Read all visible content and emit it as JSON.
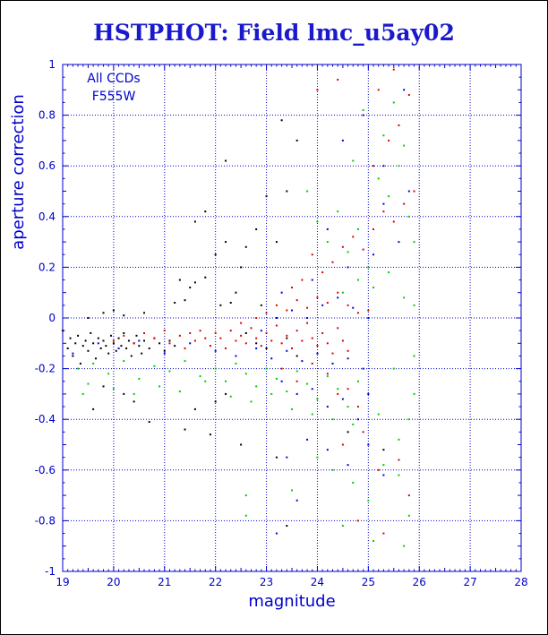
{
  "chart_data": {
    "type": "scatter",
    "title": "HSTPHOT: Field lmc_u5ay02",
    "xlabel": "magnitude",
    "ylabel": "aperture correction",
    "xlim": [
      19,
      28
    ],
    "ylim": [
      -1,
      1
    ],
    "xticks": [
      19,
      20,
      21,
      22,
      23,
      24,
      25,
      26,
      27,
      28
    ],
    "yticks": [
      -1,
      -0.8,
      -0.6,
      -0.4,
      -0.2,
      0,
      0.2,
      0.4,
      0.6,
      0.8,
      1
    ],
    "grid": true,
    "annotations": [
      "All CCDs",
      "F555W"
    ],
    "series": [
      {
        "color": "#000000",
        "points": [
          [
            19.0,
            -0.05
          ],
          [
            19.1,
            -0.12
          ],
          [
            19.15,
            -0.08
          ],
          [
            19.2,
            -0.15
          ],
          [
            19.25,
            -0.1
          ],
          [
            19.3,
            -0.07
          ],
          [
            19.35,
            -0.18
          ],
          [
            19.4,
            -0.11
          ],
          [
            19.45,
            -0.09
          ],
          [
            19.5,
            -0.13
          ],
          [
            19.55,
            -0.06
          ],
          [
            19.6,
            -0.1
          ],
          [
            19.65,
            -0.16
          ],
          [
            19.7,
            -0.08
          ],
          [
            19.75,
            -0.12
          ],
          [
            19.8,
            -0.09
          ],
          [
            19.85,
            -0.11
          ],
          [
            19.9,
            -0.14
          ],
          [
            19.95,
            -0.07
          ],
          [
            20.0,
            -0.1
          ],
          [
            20.05,
            -0.13
          ],
          [
            20.1,
            -0.08
          ],
          [
            20.15,
            -0.11
          ],
          [
            20.2,
            -0.06
          ],
          [
            20.25,
            -0.12
          ],
          [
            20.3,
            -0.09
          ],
          [
            20.35,
            -0.15
          ],
          [
            20.4,
            -0.1
          ],
          [
            20.45,
            -0.07
          ],
          [
            20.5,
            -0.11
          ],
          [
            20.55,
            -0.14
          ],
          [
            20.6,
            -0.09
          ],
          [
            20.7,
            -0.12
          ],
          [
            20.8,
            -0.08
          ],
          [
            20.9,
            -0.1
          ],
          [
            21.0,
            -0.13
          ],
          [
            21.1,
            -0.09
          ],
          [
            21.2,
            -0.11
          ],
          [
            19.5,
            0.0
          ],
          [
            19.8,
            0.02
          ],
          [
            20.0,
            0.03
          ],
          [
            20.2,
            0.01
          ],
          [
            20.6,
            0.02
          ],
          [
            21.2,
            0.06
          ],
          [
            21.4,
            0.07
          ],
          [
            21.5,
            0.12
          ],
          [
            21.8,
            0.16
          ],
          [
            21.6,
            0.14
          ],
          [
            21.3,
            0.15
          ],
          [
            22.0,
            0.25
          ],
          [
            22.2,
            0.3
          ],
          [
            22.5,
            0.2
          ],
          [
            22.9,
            0.05
          ],
          [
            22.1,
            0.05
          ],
          [
            22.4,
            0.1
          ],
          [
            21.6,
            0.38
          ],
          [
            21.8,
            0.42
          ],
          [
            22.2,
            0.62
          ],
          [
            22.6,
            0.28
          ],
          [
            22.8,
            0.35
          ],
          [
            22.3,
            0.06
          ],
          [
            23.0,
            0.48
          ],
          [
            23.3,
            0.78
          ],
          [
            23.6,
            0.7
          ],
          [
            23.2,
            0.3
          ],
          [
            23.4,
            0.5
          ],
          [
            19.6,
            -0.36
          ],
          [
            19.8,
            -0.27
          ],
          [
            20.2,
            -0.3
          ],
          [
            20.4,
            -0.33
          ],
          [
            20.7,
            -0.41
          ],
          [
            21.4,
            -0.44
          ],
          [
            21.6,
            -0.36
          ],
          [
            21.9,
            -0.46
          ],
          [
            22.0,
            -0.33
          ],
          [
            22.2,
            -0.3
          ],
          [
            22.5,
            -0.5
          ],
          [
            23.4,
            -0.82
          ],
          [
            23.2,
            -0.55
          ],
          [
            24.6,
            -0.45
          ],
          [
            25.3,
            -0.52
          ],
          [
            22.6,
            -0.06
          ],
          [
            22.8,
            -0.1
          ],
          [
            23.0,
            -0.12
          ],
          [
            23.4,
            -0.08
          ],
          [
            23.6,
            -0.15
          ]
        ]
      },
      {
        "color": "#dd0000",
        "points": [
          [
            20.0,
            -0.09
          ],
          [
            20.2,
            -0.07
          ],
          [
            20.4,
            -0.1
          ],
          [
            20.6,
            -0.06
          ],
          [
            20.8,
            -0.08
          ],
          [
            21.0,
            -0.05
          ],
          [
            21.1,
            -0.1
          ],
          [
            21.3,
            -0.07
          ],
          [
            21.4,
            -0.12
          ],
          [
            21.5,
            -0.06
          ],
          [
            21.6,
            -0.09
          ],
          [
            21.7,
            -0.05
          ],
          [
            21.8,
            -0.08
          ],
          [
            21.9,
            -0.11
          ],
          [
            22.0,
            -0.06
          ],
          [
            22.1,
            -0.08
          ],
          [
            22.2,
            -0.12
          ],
          [
            22.3,
            -0.05
          ],
          [
            22.4,
            -0.09
          ],
          [
            22.5,
            -0.07
          ],
          [
            22.6,
            -0.1
          ],
          [
            22.7,
            -0.04
          ],
          [
            22.8,
            -0.08
          ],
          [
            22.9,
            -0.11
          ],
          [
            23.0,
            -0.06
          ],
          [
            23.1,
            -0.09
          ],
          [
            23.2,
            -0.03
          ],
          [
            23.3,
            -0.1
          ],
          [
            23.4,
            -0.07
          ],
          [
            23.5,
            -0.12
          ],
          [
            23.6,
            -0.05
          ],
          [
            23.7,
            -0.09
          ],
          [
            23.8,
            -0.02
          ],
          [
            23.9,
            -0.08
          ],
          [
            24.0,
            -0.11
          ],
          [
            24.1,
            -0.06
          ],
          [
            24.2,
            -0.1
          ],
          [
            24.3,
            -0.14
          ],
          [
            24.4,
            -0.04
          ],
          [
            24.5,
            -0.09
          ],
          [
            24.6,
            -0.13
          ],
          [
            22.5,
            -0.02
          ],
          [
            22.8,
            0.0
          ],
          [
            23.0,
            0.02
          ],
          [
            23.2,
            0.05
          ],
          [
            23.4,
            0.03
          ],
          [
            23.6,
            0.07
          ],
          [
            23.8,
            0.04
          ],
          [
            24.0,
            0.08
          ],
          [
            24.2,
            0.06
          ],
          [
            24.4,
            0.1
          ],
          [
            24.6,
            0.05
          ],
          [
            24.8,
            0.02
          ],
          [
            25.0,
            0.03
          ],
          [
            23.5,
            0.12
          ],
          [
            23.7,
            0.15
          ],
          [
            23.9,
            0.25
          ],
          [
            24.1,
            0.18
          ],
          [
            24.3,
            0.22
          ],
          [
            24.5,
            0.28
          ],
          [
            24.7,
            0.32
          ],
          [
            24.9,
            0.27
          ],
          [
            25.1,
            0.35
          ],
          [
            25.3,
            0.42
          ],
          [
            25.5,
            0.38
          ],
          [
            25.7,
            0.45
          ],
          [
            25.9,
            0.5
          ],
          [
            24.0,
            0.9
          ],
          [
            24.4,
            0.94
          ],
          [
            25.2,
            0.9
          ],
          [
            25.5,
            0.98
          ],
          [
            25.8,
            0.88
          ],
          [
            25.4,
            0.7
          ],
          [
            25.1,
            0.6
          ],
          [
            25.6,
            0.76
          ],
          [
            23.3,
            -0.2
          ],
          [
            23.6,
            -0.25
          ],
          [
            23.9,
            -0.18
          ],
          [
            24.2,
            -0.22
          ],
          [
            24.4,
            -0.3
          ],
          [
            24.6,
            -0.28
          ],
          [
            24.8,
            -0.35
          ],
          [
            24.5,
            -0.5
          ],
          [
            24.9,
            -0.45
          ],
          [
            25.2,
            -0.6
          ],
          [
            25.6,
            -0.56
          ],
          [
            25.8,
            -0.7
          ],
          [
            25.3,
            -0.85
          ],
          [
            24.8,
            -0.8
          ]
        ]
      },
      {
        "color": "#00cc00",
        "points": [
          [
            19.3,
            -0.2
          ],
          [
            19.6,
            -0.18
          ],
          [
            19.9,
            -0.22
          ],
          [
            20.2,
            -0.17
          ],
          [
            20.5,
            -0.24
          ],
          [
            20.8,
            -0.19
          ],
          [
            21.1,
            -0.21
          ],
          [
            21.4,
            -0.17
          ],
          [
            21.7,
            -0.23
          ],
          [
            22.0,
            -0.2
          ],
          [
            22.2,
            -0.25
          ],
          [
            22.4,
            -0.18
          ],
          [
            22.6,
            -0.22
          ],
          [
            22.8,
            -0.27
          ],
          [
            23.0,
            -0.2
          ],
          [
            23.2,
            -0.24
          ],
          [
            23.4,
            -0.29
          ],
          [
            23.6,
            -0.21
          ],
          [
            23.8,
            -0.26
          ],
          [
            24.0,
            -0.32
          ],
          [
            24.2,
            -0.23
          ],
          [
            24.4,
            -0.28
          ],
          [
            24.6,
            -0.35
          ],
          [
            24.8,
            -0.25
          ],
          [
            25.0,
            -0.3
          ],
          [
            25.2,
            -0.38
          ],
          [
            19.4,
            -0.3
          ],
          [
            19.5,
            -0.26
          ],
          [
            20.0,
            -0.28
          ],
          [
            20.4,
            -0.3
          ],
          [
            20.9,
            -0.27
          ],
          [
            21.3,
            -0.29
          ],
          [
            21.8,
            -0.25
          ],
          [
            22.3,
            -0.31
          ],
          [
            22.7,
            -0.33
          ],
          [
            23.1,
            -0.3
          ],
          [
            23.5,
            -0.36
          ],
          [
            23.9,
            -0.38
          ],
          [
            24.3,
            -0.4
          ],
          [
            24.7,
            -0.42
          ],
          [
            22.6,
            -0.7
          ],
          [
            22.6,
            -0.78
          ],
          [
            23.5,
            -0.68
          ],
          [
            24.0,
            -0.55
          ],
          [
            24.3,
            -0.6
          ],
          [
            24.7,
            -0.65
          ],
          [
            25.0,
            -0.72
          ],
          [
            25.3,
            -0.58
          ],
          [
            25.6,
            -0.62
          ],
          [
            25.8,
            -0.78
          ],
          [
            24.5,
            -0.82
          ],
          [
            25.1,
            -0.88
          ],
          [
            25.7,
            -0.9
          ],
          [
            23.8,
            0.5
          ],
          [
            24.0,
            0.38
          ],
          [
            24.2,
            0.3
          ],
          [
            24.4,
            0.42
          ],
          [
            24.6,
            0.26
          ],
          [
            24.8,
            0.35
          ],
          [
            25.0,
            0.2
          ],
          [
            25.2,
            0.55
          ],
          [
            25.4,
            0.48
          ],
          [
            25.6,
            0.6
          ],
          [
            25.7,
            0.68
          ],
          [
            25.8,
            0.4
          ],
          [
            25.9,
            0.3
          ],
          [
            24.7,
            0.62
          ],
          [
            24.9,
            0.82
          ],
          [
            25.3,
            0.72
          ],
          [
            25.5,
            0.85
          ],
          [
            24.5,
            0.1
          ],
          [
            24.8,
            0.15
          ],
          [
            25.1,
            0.12
          ],
          [
            25.4,
            0.18
          ],
          [
            25.7,
            0.08
          ],
          [
            25.9,
            0.05
          ],
          [
            25.8,
            -0.4
          ],
          [
            25.9,
            -0.3
          ],
          [
            25.6,
            -0.48
          ],
          [
            25.5,
            -0.2
          ],
          [
            25.9,
            -0.15
          ]
        ]
      },
      {
        "color": "#0000dd",
        "points": [
          [
            19.2,
            -0.14
          ],
          [
            19.7,
            -0.1
          ],
          [
            20.1,
            -0.12
          ],
          [
            20.5,
            -0.09
          ],
          [
            21.0,
            -0.14
          ],
          [
            21.5,
            -0.1
          ],
          [
            22.0,
            -0.13
          ],
          [
            22.4,
            -0.15
          ],
          [
            22.8,
            -0.12
          ],
          [
            23.1,
            -0.16
          ],
          [
            23.4,
            -0.13
          ],
          [
            23.7,
            -0.17
          ],
          [
            24.0,
            -0.14
          ],
          [
            24.3,
            -0.18
          ],
          [
            24.6,
            -0.16
          ],
          [
            24.9,
            -0.2
          ],
          [
            22.9,
            -0.05
          ],
          [
            23.2,
            0.0
          ],
          [
            23.5,
            0.03
          ],
          [
            23.8,
            0.0
          ],
          [
            24.1,
            0.05
          ],
          [
            24.4,
            0.08
          ],
          [
            24.7,
            0.04
          ],
          [
            25.0,
            0.0
          ],
          [
            23.3,
            0.1
          ],
          [
            23.9,
            0.15
          ],
          [
            24.6,
            0.2
          ],
          [
            25.1,
            0.25
          ],
          [
            25.6,
            0.3
          ],
          [
            24.2,
            0.35
          ],
          [
            25.3,
            0.45
          ],
          [
            25.8,
            0.5
          ],
          [
            23.3,
            -0.25
          ],
          [
            23.6,
            -0.3
          ],
          [
            23.9,
            -0.28
          ],
          [
            24.2,
            -0.35
          ],
          [
            24.5,
            -0.32
          ],
          [
            24.8,
            -0.4
          ],
          [
            25.0,
            -0.3
          ],
          [
            23.4,
            -0.55
          ],
          [
            23.8,
            -0.48
          ],
          [
            24.2,
            -0.52
          ],
          [
            24.6,
            -0.58
          ],
          [
            25.0,
            -0.5
          ],
          [
            25.3,
            -0.62
          ],
          [
            23.6,
            -0.72
          ],
          [
            23.2,
            -0.85
          ],
          [
            24.9,
            0.8
          ],
          [
            25.3,
            0.6
          ],
          [
            25.7,
            0.9
          ],
          [
            24.5,
            0.7
          ]
        ]
      }
    ]
  }
}
